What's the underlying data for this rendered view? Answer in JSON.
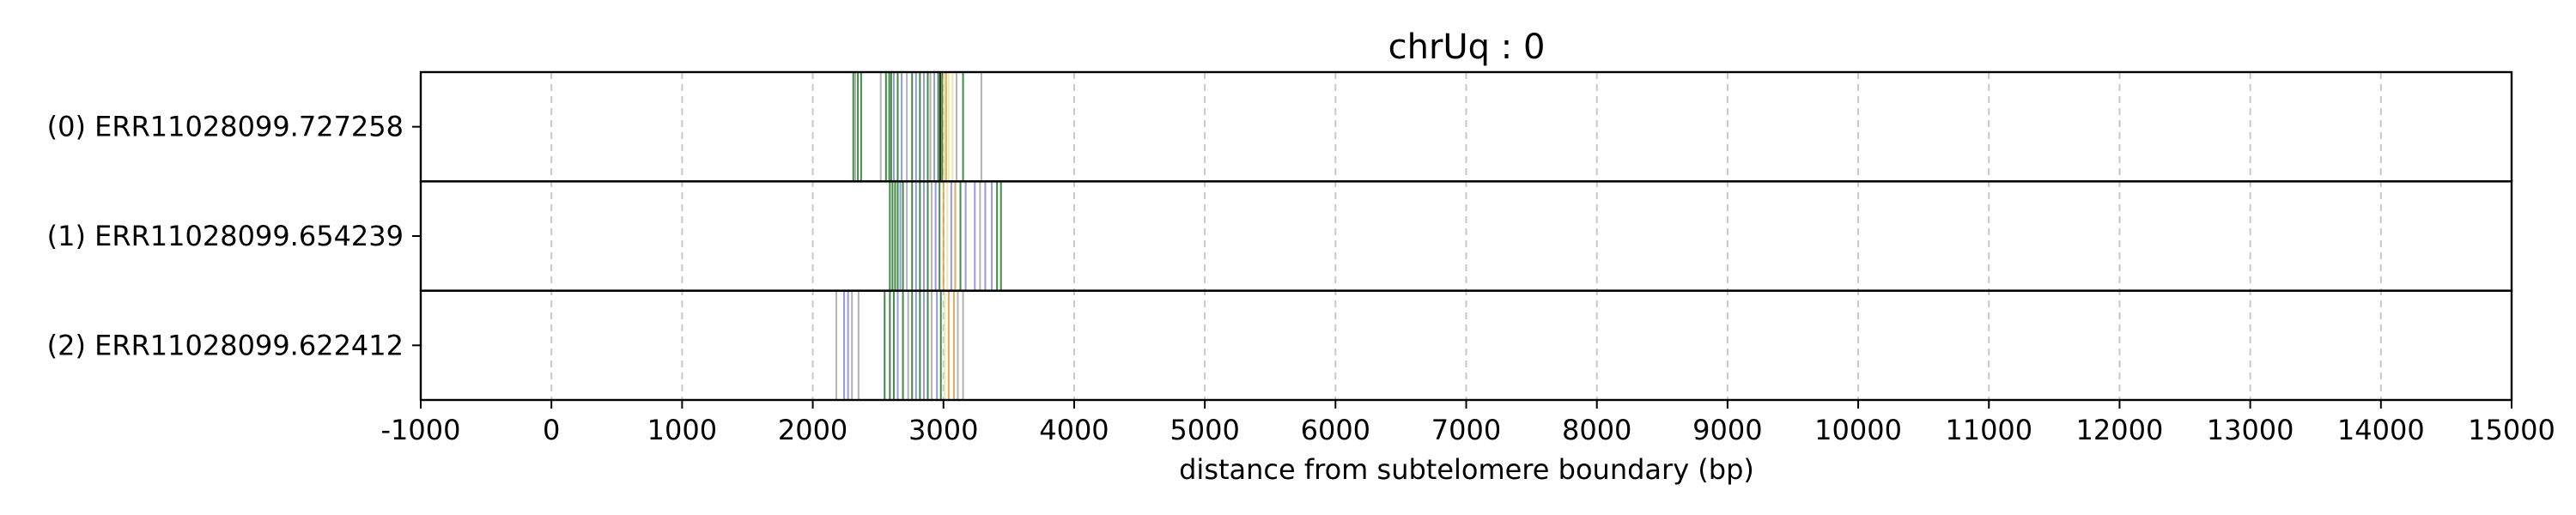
{
  "chart_data": {
    "type": "strip",
    "title": "chrUq : 0",
    "xlabel": "distance from subtelomere boundary (bp)",
    "ylabel": "",
    "xlim": [
      -1000,
      15000
    ],
    "xticks": [
      -1000,
      0,
      1000,
      2000,
      3000,
      4000,
      5000,
      6000,
      7000,
      8000,
      9000,
      10000,
      11000,
      12000,
      13000,
      14000,
      15000
    ],
    "xgrid": true,
    "grid_style": "dashed",
    "colors": {
      "green": "#2e7d32",
      "blue": "#8a8fd8",
      "orange": "#e0a04a",
      "yellow": "#eee7a0",
      "gray": "#999999",
      "black": "#111111"
    },
    "rows": [
      {
        "label": "(0) ERR11028099.727258",
        "marks": [
          {
            "x": 2310,
            "c": "green"
          },
          {
            "x": 2325,
            "c": "gray"
          },
          {
            "x": 2345,
            "c": "green"
          },
          {
            "x": 2370,
            "c": "green"
          },
          {
            "x": 2520,
            "c": "gray"
          },
          {
            "x": 2560,
            "c": "green"
          },
          {
            "x": 2585,
            "c": "green"
          },
          {
            "x": 2600,
            "c": "green"
          },
          {
            "x": 2620,
            "c": "blue"
          },
          {
            "x": 2650,
            "c": "green"
          },
          {
            "x": 2680,
            "c": "blue"
          },
          {
            "x": 2720,
            "c": "gray"
          },
          {
            "x": 2760,
            "c": "green"
          },
          {
            "x": 2790,
            "c": "blue"
          },
          {
            "x": 2820,
            "c": "green"
          },
          {
            "x": 2850,
            "c": "blue"
          },
          {
            "x": 2880,
            "c": "green"
          },
          {
            "x": 2900,
            "c": "gray"
          },
          {
            "x": 2930,
            "c": "blue"
          },
          {
            "x": 2960,
            "c": "green"
          },
          {
            "x": 2975,
            "c": "black"
          },
          {
            "x": 2990,
            "c": "green"
          },
          {
            "x": 3005,
            "c": "yellow"
          },
          {
            "x": 3020,
            "c": "orange"
          },
          {
            "x": 3040,
            "c": "yellow"
          },
          {
            "x": 3070,
            "c": "yellow"
          },
          {
            "x": 3100,
            "c": "gray"
          },
          {
            "x": 3150,
            "c": "green"
          },
          {
            "x": 3290,
            "c": "gray"
          }
        ]
      },
      {
        "label": "(1) ERR11028099.654239",
        "marks": [
          {
            "x": 2590,
            "c": "green"
          },
          {
            "x": 2610,
            "c": "green"
          },
          {
            "x": 2630,
            "c": "green"
          },
          {
            "x": 2650,
            "c": "green"
          },
          {
            "x": 2670,
            "c": "blue"
          },
          {
            "x": 2690,
            "c": "green"
          },
          {
            "x": 2720,
            "c": "gray"
          },
          {
            "x": 2760,
            "c": "green"
          },
          {
            "x": 2790,
            "c": "blue"
          },
          {
            "x": 2820,
            "c": "green"
          },
          {
            "x": 2850,
            "c": "blue"
          },
          {
            "x": 2880,
            "c": "green"
          },
          {
            "x": 2910,
            "c": "gray"
          },
          {
            "x": 2940,
            "c": "blue"
          },
          {
            "x": 2970,
            "c": "green"
          },
          {
            "x": 3000,
            "c": "orange"
          },
          {
            "x": 3030,
            "c": "yellow"
          },
          {
            "x": 3060,
            "c": "blue"
          },
          {
            "x": 3090,
            "c": "orange"
          },
          {
            "x": 3130,
            "c": "green"
          },
          {
            "x": 3170,
            "c": "blue"
          },
          {
            "x": 3240,
            "c": "blue"
          },
          {
            "x": 3280,
            "c": "gray"
          },
          {
            "x": 3320,
            "c": "blue"
          },
          {
            "x": 3370,
            "c": "blue"
          },
          {
            "x": 3410,
            "c": "green"
          },
          {
            "x": 3440,
            "c": "green"
          }
        ]
      },
      {
        "label": "(2) ERR11028099.622412",
        "marks": [
          {
            "x": 2180,
            "c": "gray"
          },
          {
            "x": 2240,
            "c": "blue"
          },
          {
            "x": 2270,
            "c": "blue"
          },
          {
            "x": 2300,
            "c": "gray"
          },
          {
            "x": 2350,
            "c": "gray"
          },
          {
            "x": 2550,
            "c": "green"
          },
          {
            "x": 2590,
            "c": "green"
          },
          {
            "x": 2620,
            "c": "green"
          },
          {
            "x": 2650,
            "c": "blue"
          },
          {
            "x": 2690,
            "c": "green"
          },
          {
            "x": 2730,
            "c": "gray"
          },
          {
            "x": 2760,
            "c": "green"
          },
          {
            "x": 2790,
            "c": "blue"
          },
          {
            "x": 2820,
            "c": "green"
          },
          {
            "x": 2850,
            "c": "blue"
          },
          {
            "x": 2880,
            "c": "green"
          },
          {
            "x": 2910,
            "c": "gray"
          },
          {
            "x": 2950,
            "c": "blue"
          },
          {
            "x": 2980,
            "c": "green"
          },
          {
            "x": 3010,
            "c": "yellow"
          },
          {
            "x": 3040,
            "c": "orange"
          },
          {
            "x": 3080,
            "c": "orange"
          },
          {
            "x": 3110,
            "c": "gray"
          },
          {
            "x": 3150,
            "c": "gray"
          }
        ]
      }
    ]
  }
}
